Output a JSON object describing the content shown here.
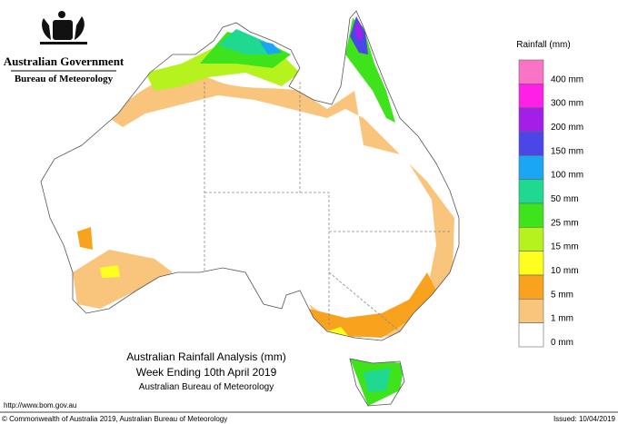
{
  "header": {
    "government": "Australian Government",
    "bureau": "Bureau of Meteorology"
  },
  "legend": {
    "title": "Rainfall (mm)",
    "items": [
      {
        "label": "400 mm",
        "color": "#f973c6"
      },
      {
        "label": "300 mm",
        "color": "#ff1fe6"
      },
      {
        "label": "200 mm",
        "color": "#a21fe8"
      },
      {
        "label": "150 mm",
        "color": "#4a46e8"
      },
      {
        "label": "100 mm",
        "color": "#1aa6f2"
      },
      {
        "label": "50 mm",
        "color": "#1ed98f"
      },
      {
        "label": "25 mm",
        "color": "#3fe31c"
      },
      {
        "label": "15 mm",
        "color": "#b6f21e"
      },
      {
        "label": "10 mm",
        "color": "#ffff1f"
      },
      {
        "label": "5 mm",
        "color": "#f8a21e"
      },
      {
        "label": "1 mm",
        "color": "#f9c47c"
      },
      {
        "label": "0 mm",
        "color": "#ffffff"
      }
    ]
  },
  "map_title": [
    "Australian Rainfall Analysis (mm)",
    "Week Ending 10th April 2019",
    "Australian Bureau of Meteorology"
  ],
  "footer": {
    "url": "http://www.bom.gov.au",
    "copyright": "© Commonwealth of Australia 2019, Australian Bureau of Meteorology",
    "issued": "Issued: 10/04/2019"
  }
}
